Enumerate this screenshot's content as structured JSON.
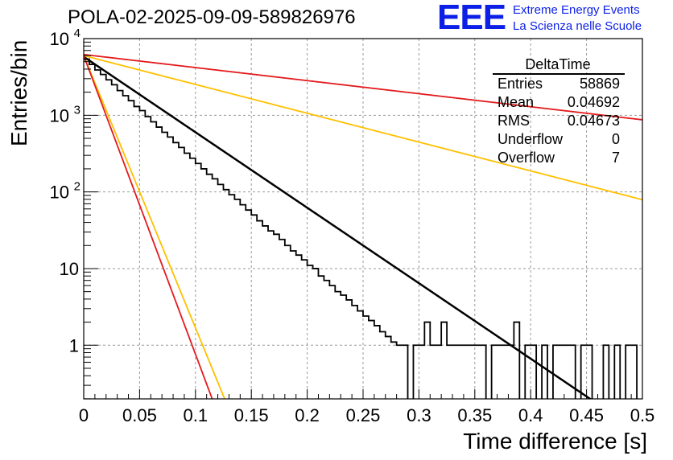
{
  "title": "POLA-02-2025-09-09-589826976",
  "logo": {
    "mark": "EEE",
    "line1": "Extreme Energy Events",
    "line2": "La Scienza nelle Scuole"
  },
  "stats": {
    "title": "DeltaTime",
    "rows": [
      {
        "label": "Entries",
        "value": "58869"
      },
      {
        "label": "Mean",
        "value": "0.04692"
      },
      {
        "label": "RMS",
        "value": "0.04673"
      },
      {
        "label": "Underflow",
        "value": "0"
      },
      {
        "label": "Overflow",
        "value": "7"
      }
    ]
  },
  "colors": {
    "histogram": "#000000",
    "fit_black": "#000000",
    "fit_red": "#e41a1c",
    "fit_yellow": "#ffc000"
  },
  "chart_data": {
    "type": "histogram",
    "xlabel": "Time difference [s]",
    "ylabel": "Entries/bin",
    "xlim": [
      0,
      0.5
    ],
    "ylim_log10": [
      -0.7,
      4.0
    ],
    "yscale": "log",
    "grid": true,
    "x_ticks": [
      "0",
      "0.05",
      "0.1",
      "0.15",
      "0.2",
      "0.25",
      "0.3",
      "0.35",
      "0.4",
      "0.45",
      "0.5"
    ],
    "y_ticks": [
      {
        "value": 1,
        "label": "1"
      },
      {
        "value": 10,
        "label": "10"
      },
      {
        "value": 100,
        "label": "10",
        "exp": "2"
      },
      {
        "value": 1000,
        "label": "10",
        "exp": "3"
      },
      {
        "value": 10000,
        "label": "10",
        "exp": "4"
      }
    ],
    "bin_width": 0.005,
    "histogram_counts": [
      5400,
      4600,
      3900,
      3400,
      2900,
      2500,
      2100,
      1800,
      1550,
      1300,
      1150,
      960,
      820,
      700,
      600,
      520,
      440,
      380,
      320,
      275,
      235,
      200,
      170,
      148,
      125,
      107,
      92,
      80,
      68,
      58,
      50,
      42,
      36,
      31,
      28,
      24,
      20,
      17,
      15,
      13,
      11,
      10,
      8,
      7,
      6,
      5,
      4.5,
      3.9,
      3.3,
      2.8,
      2.4,
      2.1,
      1.8,
      1.5,
      1.3,
      1.1,
      1,
      1,
      0,
      1,
      1,
      2,
      1,
      1,
      2,
      1,
      1,
      1,
      1,
      1,
      1,
      1,
      0,
      1,
      1,
      1,
      1,
      2,
      0,
      1,
      1,
      0,
      1,
      0,
      1,
      1,
      1,
      1,
      0,
      1,
      1,
      0,
      0,
      1,
      0,
      1,
      0,
      1,
      1,
      0
    ],
    "series": [
      {
        "name": "fit",
        "color_key": "fit_black",
        "A": 5800,
        "tau": 0.0441
      },
      {
        "name": "red-slow",
        "color_key": "fit_red",
        "A": 6200,
        "tau": 0.255
      },
      {
        "name": "yellow-slow",
        "color_key": "fit_yellow",
        "A": 6000,
        "tau": 0.1155
      },
      {
        "name": "yellow-fast",
        "color_key": "fit_yellow",
        "A": 6000,
        "tau": 0.01223
      },
      {
        "name": "red-fast",
        "color_key": "fit_red",
        "A": 6000,
        "tau": 0.01115
      }
    ]
  }
}
